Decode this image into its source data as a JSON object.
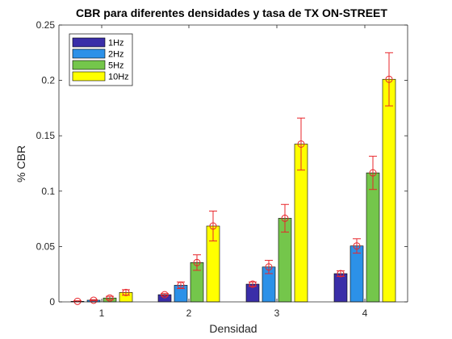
{
  "chart_data": {
    "type": "bar",
    "title": "CBR para diferentes densidades y tasa de TX ON-STREET",
    "xlabel": "Densidad",
    "ylabel": "% CBR",
    "categories": [
      "1",
      "2",
      "3",
      "4"
    ],
    "ylim": [
      0,
      0.25
    ],
    "yticks": [
      "0",
      "0.05",
      "0.1",
      "0.15",
      "0.2",
      "0.25"
    ],
    "grid": false,
    "legend_position": "top-left",
    "series": [
      {
        "name": "1Hz",
        "color": "#3a2ea8",
        "values": [
          0.0005,
          0.0065,
          0.016,
          0.0255
        ],
        "errors": [
          0.0005,
          0.001,
          0.002,
          0.0025
        ]
      },
      {
        "name": "2Hz",
        "color": "#2c91e8",
        "values": [
          0.0015,
          0.015,
          0.0315,
          0.0505
        ],
        "errors": [
          0.0005,
          0.003,
          0.006,
          0.0065
        ]
      },
      {
        "name": "5Hz",
        "color": "#74c64b",
        "values": [
          0.0035,
          0.0355,
          0.0755,
          0.1165
        ],
        "errors": [
          0.0015,
          0.007,
          0.0125,
          0.015
        ]
      },
      {
        "name": "10Hz",
        "color": "#ffff00",
        "values": [
          0.0085,
          0.0685,
          0.1425,
          0.201
        ],
        "errors": [
          0.0025,
          0.0135,
          0.0235,
          0.024
        ]
      }
    ],
    "error_marker_color": "#e8262b"
  }
}
